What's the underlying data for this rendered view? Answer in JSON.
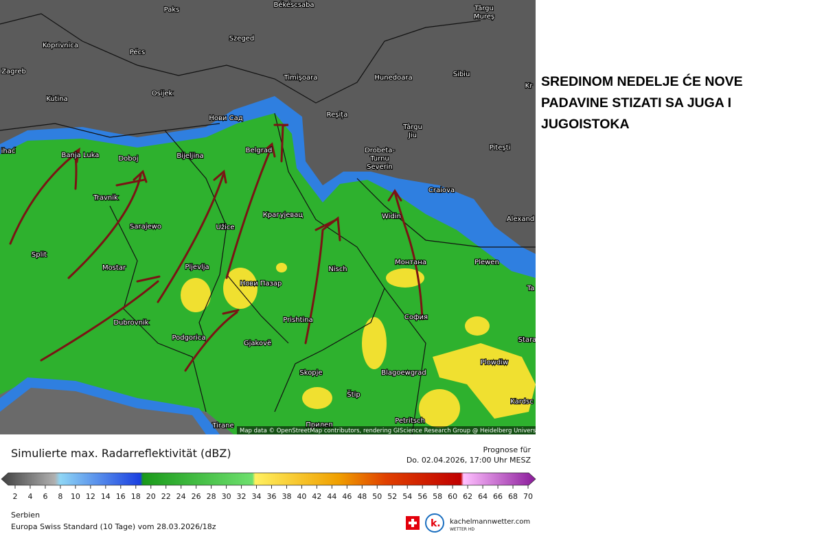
{
  "annotation": [
    "SREDINOM NEDELJE ĆE NOVE",
    "PADAVINE STIZATI SA JUGA I",
    "JUGOISTOKA"
  ],
  "map": {
    "cities": [
      "Paks",
      "Békéscsaba",
      "Târgu",
      "Mureș",
      "Koprivnica",
      "Pécs",
      "Szeged",
      "Zagreb",
      "Timișoara",
      "Hunedoara",
      "Sibiu",
      "Kr",
      "Osijek",
      "Kutina",
      "Нови Сад",
      "Reșița",
      "Târgu",
      "Jiu",
      "Pitești",
      "ihać",
      "Banja Luka",
      "Doboj",
      "Bijeljina",
      "Belgrad",
      "Drobeta-",
      "Turnu",
      "Severin",
      "Craiova",
      "Travnik",
      "Крагујевац",
      "Widin",
      "Alexand",
      "Sarajewo",
      "Užice",
      "Split",
      "Mostar",
      "Pljevlja",
      "Монтана",
      "Plewen",
      "Nisch",
      "Нови Пазар",
      "Ta",
      "Dubrovnik",
      "Prishtina",
      "София",
      "Podgorica",
      "Gjakovë",
      "Stara",
      "Plowdiw",
      "Skopje",
      "Blagoewgrad",
      "Štip",
      "Kardsc",
      "Tirane",
      "Прилеп",
      "Petritsch"
    ],
    "credit": "Map data © OpenStreetMap contributors, rendering GIScience Research Group @ Heidelberg University"
  },
  "legend": {
    "title": "Simulierte max. Radarreflektivität (dBZ)",
    "ticks": [
      2,
      4,
      6,
      8,
      10,
      12,
      14,
      16,
      18,
      20,
      22,
      24,
      26,
      28,
      30,
      32,
      34,
      36,
      38,
      40,
      42,
      44,
      46,
      48,
      50,
      52,
      54,
      56,
      58,
      60,
      62,
      64,
      66,
      68,
      70
    ]
  },
  "forecast": {
    "label": "Prognose für",
    "time": "Do. 02.04.2026, 17:00 Uhr MESZ"
  },
  "footer": {
    "region": "Serbien",
    "model": "Europa Swiss Standard (10 Tage) vom 28.03.2026/18z"
  },
  "brand": {
    "name": "kachelmannwetter.com",
    "tagline": "WETTER HD"
  }
}
